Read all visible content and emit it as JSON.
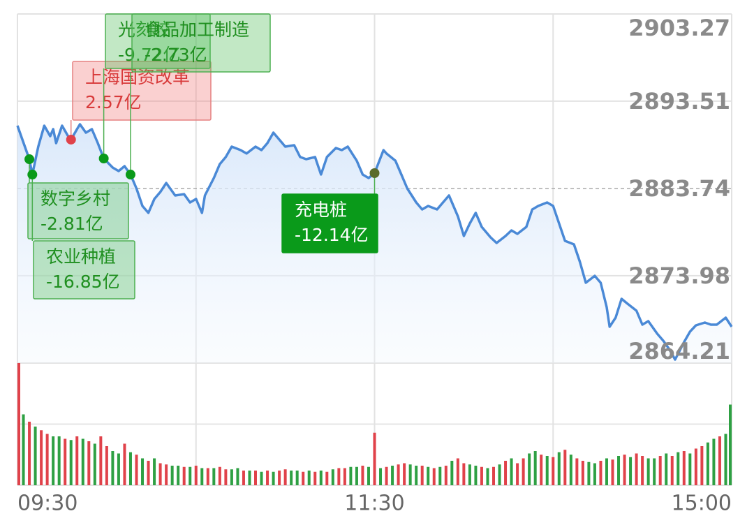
{
  "chart_data": {
    "type": "intraday",
    "xlim": [
      0,
      240
    ],
    "xticks": [
      {
        "value": 0,
        "label": "09:30"
      },
      {
        "value": 120,
        "label": "11:30"
      },
      {
        "value": 240,
        "label": "15:00"
      }
    ],
    "xgrid": [
      60,
      120,
      180
    ],
    "ylim": [
      2864.21,
      2903.27
    ],
    "yticks": [
      2903.27,
      2893.51,
      2883.74,
      2873.98,
      2864.21
    ],
    "prev_close": 2883.74,
    "line_color": "#4a89d6",
    "up_color": "#e0424a",
    "down_color": "#2ea043",
    "price": {
      "x": [
        0,
        4,
        5,
        7,
        9,
        11,
        12,
        13,
        15,
        17,
        18,
        20,
        21,
        23,
        25,
        27,
        29,
        32,
        34,
        36,
        38,
        40,
        42,
        44,
        46,
        48,
        50,
        53,
        56,
        58,
        60,
        62,
        63,
        66,
        68,
        70,
        72,
        75,
        77,
        80,
        82,
        84,
        86,
        88,
        90,
        93,
        95,
        97,
        100,
        102,
        104,
        107,
        109,
        111,
        114,
        116,
        118,
        120,
        123,
        124,
        127,
        129,
        131,
        134,
        136,
        138,
        141,
        143,
        145,
        148,
        150,
        152,
        154,
        156,
        159,
        161,
        164,
        166,
        168,
        171,
        173,
        175,
        178,
        180,
        182,
        184,
        187,
        189,
        191,
        194,
        196,
        198,
        199,
        201,
        203,
        205,
        208,
        210,
        212,
        215,
        217,
        219,
        221,
        224,
        226,
        228,
        231,
        233,
        235,
        238,
        240
      ],
      "values": [
        2890.77,
        2887.02,
        2885.3,
        2888.43,
        2890.77,
        2889.6,
        2890.38,
        2888.82,
        2890.77,
        2889.6,
        2889.21,
        2890.38,
        2890.93,
        2889.99,
        2890.38,
        2888.82,
        2887.1,
        2886.08,
        2885.69,
        2886.24,
        2885.3,
        2883.74,
        2881.79,
        2881.01,
        2882.57,
        2883.35,
        2884.36,
        2882.96,
        2883.11,
        2882.18,
        2882.57,
        2881.01,
        2882.96,
        2884.91,
        2886.47,
        2887.26,
        2888.43,
        2888.04,
        2887.65,
        2888.43,
        2888.04,
        2888.82,
        2889.99,
        2889.21,
        2888.43,
        2888.58,
        2887.26,
        2887.02,
        2887.26,
        2885.3,
        2887.26,
        2888.27,
        2888.04,
        2888.43,
        2886.86,
        2885.3,
        2884.91,
        2885.46,
        2888.04,
        2887.65,
        2886.86,
        2885.3,
        2883.74,
        2882.18,
        2881.4,
        2881.79,
        2881.4,
        2882.18,
        2882.96,
        2880.62,
        2878.43,
        2879.83,
        2881.01,
        2879.44,
        2878.27,
        2877.65,
        2878.43,
        2879.05,
        2878.66,
        2879.44,
        2881.4,
        2881.79,
        2882.18,
        2881.79,
        2879.83,
        2877.88,
        2877.49,
        2875.54,
        2873.19,
        2873.97,
        2873.19,
        2870.46,
        2868.27,
        2869.29,
        2871.4,
        2870.85,
        2870.07,
        2868.51,
        2868.9,
        2867.49,
        2866.71,
        2865.77,
        2864.6,
        2866.55,
        2867.72,
        2868.43,
        2868.74,
        2868.51,
        2868.51,
        2869.29,
        2868.27
      ]
    },
    "volume_ylim": [
      0,
      100
    ],
    "volume": [
      100,
      58,
      52,
      48,
      45,
      42,
      40,
      40,
      38,
      37,
      40,
      38,
      36,
      34,
      40,
      32,
      28,
      26,
      34,
      27,
      25,
      22,
      20,
      22,
      18,
      17,
      16,
      16,
      15,
      15,
      16,
      14,
      14,
      14,
      15,
      13,
      13,
      14,
      12,
      12,
      12,
      11,
      12,
      11,
      12,
      13,
      12,
      12,
      11,
      12,
      11,
      12,
      11,
      13,
      14,
      14,
      15,
      15,
      16,
      15,
      43,
      14,
      15,
      16,
      17,
      18,
      17,
      16,
      16,
      15,
      14,
      15,
      16,
      20,
      22,
      18,
      17,
      16,
      15,
      14,
      15,
      17,
      20,
      22,
      18,
      22,
      26,
      28,
      25,
      24,
      23,
      27,
      29,
      25,
      22,
      20,
      19,
      18,
      20,
      22,
      21,
      24,
      25,
      23,
      26,
      24,
      22,
      22,
      24,
      26,
      24,
      27,
      28,
      26,
      30,
      32,
      35,
      38,
      40,
      42,
      66
    ],
    "volume_direction": "rgrgrrggrgrgrgrrggrgrgrgrrggrgrgrgrrggrgrgrgrrggrgrgrgrrggrgrgrgrrggrgrgrgrrggrgrgrgrrggrgrgrgrrggrgrgrgrrggrgrgrgrrggrgg",
    "annotations": [
      {
        "name": "数字乡村",
        "amount": "-2.81亿",
        "x": 4,
        "price": 2887.02,
        "direction": "down"
      },
      {
        "name": "农业种植",
        "amount": "-16.85亿",
        "x": 5,
        "price": 2885.3,
        "direction": "down"
      },
      {
        "name": "上海国资改革",
        "amount": "2.57亿",
        "x": 18,
        "price": 2889.21,
        "direction": "up"
      },
      {
        "name": "光刻胶",
        "amount": "-9.72亿",
        "x": 29,
        "price": 2887.1,
        "direction": "down"
      },
      {
        "name": "食品加工制造",
        "amount": "-2.73亿",
        "x": 38,
        "price": 2885.3,
        "direction": "down"
      },
      {
        "name": "充电桩",
        "amount": "-12.14亿",
        "x": 120,
        "price": 2885.46,
        "direction": "down",
        "highlight": true
      }
    ]
  }
}
